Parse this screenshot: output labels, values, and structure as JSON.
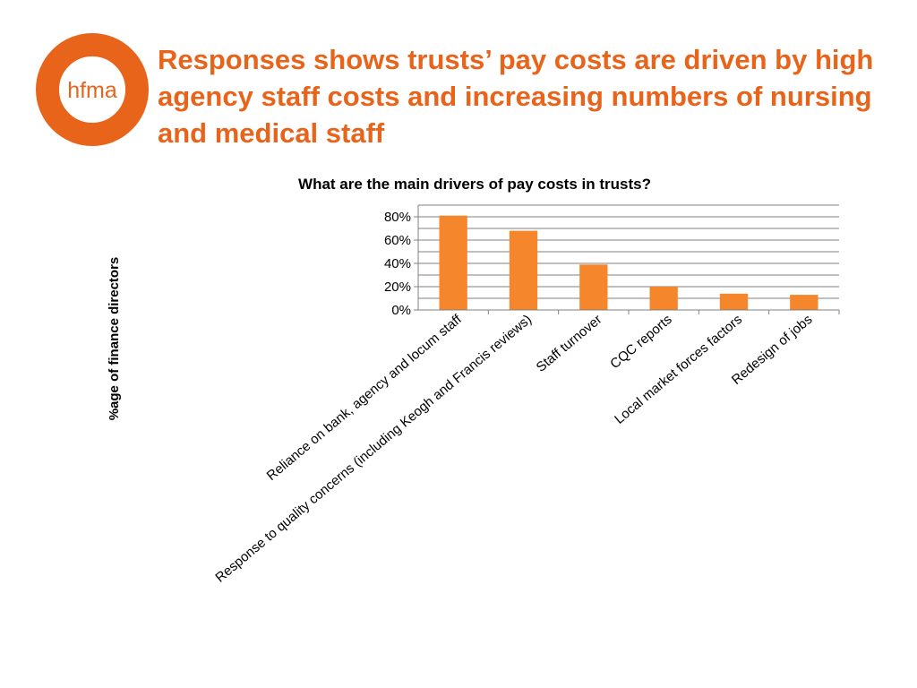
{
  "logo": {
    "text": "hfma",
    "ring_color": "#e8641b"
  },
  "headline": "Responses shows trusts’ pay costs are driven by high agency staff costs and increasing numbers of nursing and medical staff",
  "colors": {
    "accent": "#e8641b",
    "bar": "#f5862b",
    "grid": "#808080"
  },
  "chart_data": {
    "type": "bar",
    "title": "What are the main drivers of pay costs in trusts?",
    "ylabel": "%age of finance directors",
    "xlabel": "",
    "ylim": [
      0,
      0.9
    ],
    "yticks": [
      0,
      0.2,
      0.4,
      0.6,
      0.8
    ],
    "ytick_labels": [
      "0%",
      "20%",
      "40%",
      "60%",
      "80%"
    ],
    "grid": true,
    "categories": [
      "Reliance on bank, agency and locum staff",
      "Response to quality concerns (including Keogh and Francis reviews)",
      "Staff turnover",
      "CQC reports",
      "Local market forces factors",
      "Redesign of jobs"
    ],
    "values": [
      0.81,
      0.68,
      0.39,
      0.2,
      0.14,
      0.13
    ]
  }
}
